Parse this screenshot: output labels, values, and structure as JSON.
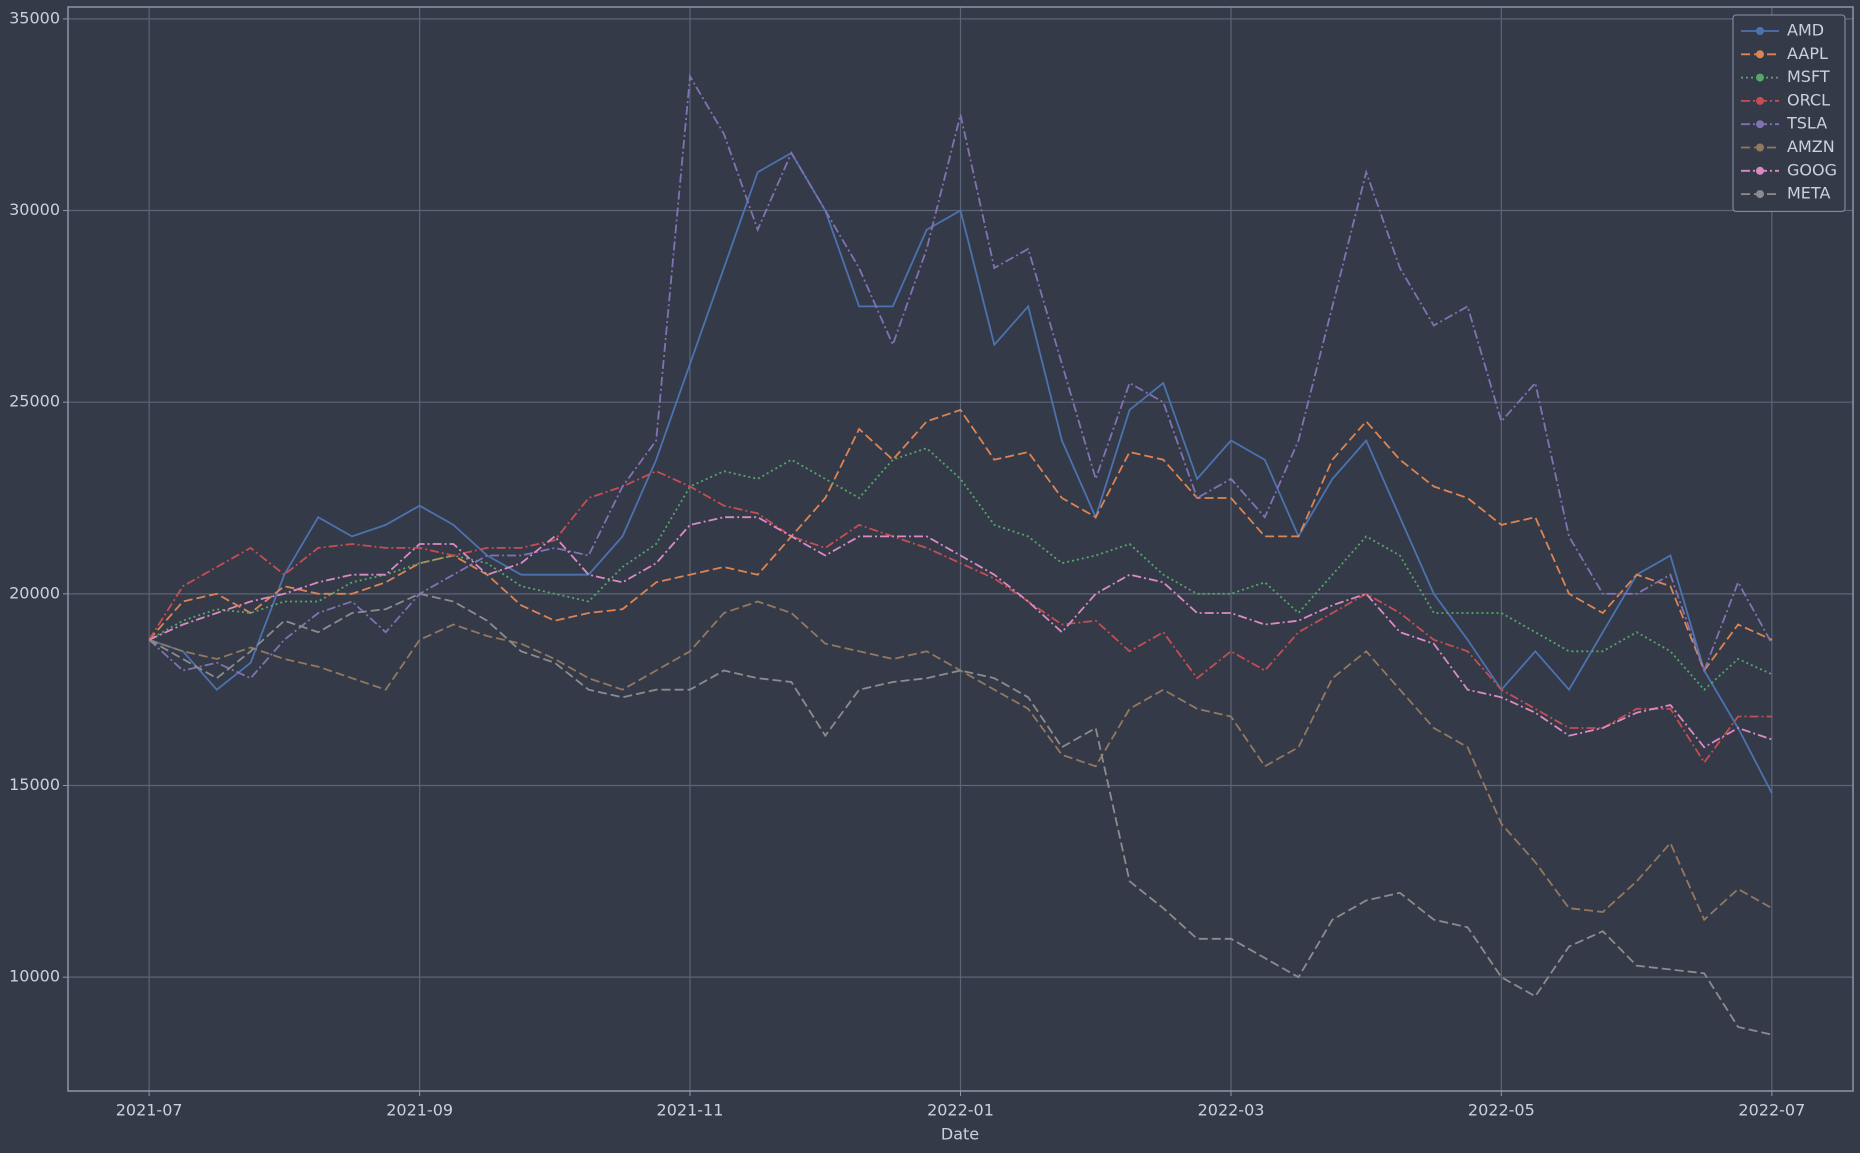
{
  "chart_data": {
    "type": "line",
    "xlabel": "Date",
    "x": [
      2021.5,
      2021.5208,
      2021.5417,
      2021.5625,
      2021.5833,
      2021.6042,
      2021.625,
      2021.6458,
      2021.6667,
      2021.6875,
      2021.7083,
      2021.7292,
      2021.75,
      2021.7708,
      2021.7917,
      2021.8125,
      2021.8333,
      2021.8542,
      2021.875,
      2021.8958,
      2021.9167,
      2021.9375,
      2021.9583,
      2021.9792,
      2022.0,
      2022.0208,
      2022.0417,
      2022.0625,
      2022.0833,
      2022.1042,
      2022.125,
      2022.1458,
      2022.1667,
      2022.1875,
      2022.2083,
      2022.2292,
      2022.25,
      2022.2708,
      2022.2917,
      2022.3125,
      2022.3333,
      2022.3542,
      2022.375,
      2022.3958,
      2022.4167,
      2022.4375,
      2022.4583,
      2022.4792,
      2022.5
    ],
    "xlim": [
      2021.45,
      2022.55
    ],
    "xticks": [
      {
        "value": 2021.5,
        "label": "2021-07"
      },
      {
        "value": 2021.6667,
        "label": "2021-09"
      },
      {
        "value": 2021.8333,
        "label": "2021-11"
      },
      {
        "value": 2022.0,
        "label": "2022-01"
      },
      {
        "value": 2022.1667,
        "label": "2022-03"
      },
      {
        "value": 2022.3333,
        "label": "2022-05"
      },
      {
        "value": 2022.5,
        "label": "2022-07"
      }
    ],
    "ylim": [
      7030,
      35310
    ],
    "yticks": [
      10000,
      15000,
      20000,
      25000,
      30000,
      35000
    ],
    "grid": true,
    "legend": "upper right",
    "series": [
      {
        "name": "AMD",
        "color": "#4c72b0",
        "dash": "solid",
        "values": [
          18800,
          18500,
          17500,
          18200,
          20500,
          22000,
          21500,
          21800,
          22300,
          21800,
          21000,
          20500,
          20500,
          20500,
          21500,
          23500,
          26000,
          28500,
          31000,
          31500,
          30000,
          27500,
          27500,
          29500,
          30000,
          26500,
          27500,
          24000,
          22000,
          24800,
          25500,
          23000,
          24000,
          23500,
          21500,
          23000,
          24000,
          22000,
          20000,
          18800,
          17500,
          18500,
          17500,
          19000,
          20500,
          21000,
          18000,
          16500,
          14800
        ]
      },
      {
        "name": "AAPL",
        "color": "#dd8452",
        "dash": "dashed",
        "values": [
          18800,
          19800,
          20000,
          19500,
          20200,
          20000,
          20000,
          20300,
          20800,
          21000,
          20500,
          19700,
          19300,
          19500,
          19600,
          20300,
          20500,
          20700,
          20500,
          21500,
          22500,
          24300,
          23500,
          24500,
          24800,
          23500,
          23700,
          22500,
          22000,
          23700,
          23500,
          22500,
          22500,
          21500,
          21500,
          23500,
          24500,
          23500,
          22800,
          22500,
          21800,
          22000,
          20000,
          19500,
          20500,
          20200,
          18000,
          19200,
          18800
        ]
      },
      {
        "name": "MSFT",
        "color": "#55a868",
        "dash": "dotted",
        "values": [
          18800,
          19300,
          19600,
          19500,
          19800,
          19800,
          20300,
          20500,
          20800,
          21000,
          20800,
          20200,
          20000,
          19800,
          20700,
          21300,
          22800,
          23200,
          23000,
          23500,
          23000,
          22500,
          23500,
          23800,
          23000,
          21800,
          21500,
          20800,
          21000,
          21300,
          20500,
          20000,
          20000,
          20300,
          19500,
          20500,
          21500,
          21000,
          19500,
          19500,
          19500,
          19000,
          18500,
          18500,
          19000,
          18500,
          17500,
          18300,
          17900
        ]
      },
      {
        "name": "ORCL",
        "color": "#c44e52",
        "dash": "dashdot",
        "values": [
          18800,
          20200,
          20700,
          21200,
          20500,
          21200,
          21300,
          21200,
          21200,
          21000,
          21200,
          21200,
          21400,
          22500,
          22800,
          23200,
          22800,
          22300,
          22100,
          21500,
          21200,
          21800,
          21500,
          21200,
          20800,
          20400,
          19800,
          19200,
          19300,
          18500,
          19000,
          17800,
          18500,
          18000,
          19000,
          19500,
          20000,
          19500,
          18800,
          18500,
          17500,
          17000,
          16500,
          16500,
          17000,
          17000,
          15600,
          16800,
          16800
        ]
      },
      {
        "name": "TSLA",
        "color": "#8172b3",
        "dash": "dashdot",
        "values": [
          18800,
          18000,
          18200,
          17800,
          18800,
          19500,
          19800,
          19000,
          20000,
          20500,
          21000,
          21000,
          21200,
          21000,
          22800,
          24000,
          33500,
          32000,
          29500,
          31500,
          30000,
          28500,
          26500,
          29000,
          32500,
          28500,
          29000,
          26000,
          23000,
          25500,
          25000,
          22500,
          23000,
          22000,
          24000,
          27500,
          31000,
          28500,
          27000,
          27500,
          24500,
          25500,
          21500,
          20000,
          20000,
          20500,
          18000,
          20300,
          18700
        ]
      },
      {
        "name": "AMZN",
        "color": "#937860",
        "dash": "dashed",
        "values": [
          18800,
          18500,
          18300,
          18600,
          18300,
          18100,
          17800,
          17500,
          18800,
          19200,
          18900,
          18700,
          18300,
          17800,
          17500,
          18000,
          18500,
          19500,
          19800,
          19500,
          18700,
          18500,
          18300,
          18500,
          18000,
          17500,
          17000,
          15800,
          15500,
          17000,
          17500,
          17000,
          16800,
          15500,
          16000,
          17800,
          18500,
          17500,
          16500,
          16000,
          14000,
          13000,
          11800,
          11700,
          12500,
          13500,
          11500,
          12300,
          11800
        ]
      },
      {
        "name": "GOOG",
        "color": "#da8bc3",
        "dash": "dashdot",
        "values": [
          18800,
          19200,
          19500,
          19800,
          20000,
          20300,
          20500,
          20500,
          21300,
          21300,
          20500,
          20800,
          21500,
          20500,
          20300,
          20800,
          21800,
          22000,
          22000,
          21500,
          21000,
          21500,
          21500,
          21500,
          21000,
          20500,
          19800,
          19000,
          20000,
          20500,
          20300,
          19500,
          19500,
          19200,
          19300,
          19700,
          20000,
          19000,
          18700,
          17500,
          17300,
          16900,
          16300,
          16500,
          16900,
          17100,
          16000,
          16500,
          16200
        ]
      },
      {
        "name": "META",
        "color": "#8c8c8c",
        "dash": "dashed",
        "values": [
          18800,
          18300,
          17800,
          18500,
          19300,
          19000,
          19500,
          19600,
          20000,
          19800,
          19300,
          18500,
          18200,
          17500,
          17300,
          17500,
          17500,
          18000,
          17800,
          17700,
          16300,
          17500,
          17700,
          17800,
          18000,
          17800,
          17300,
          16000,
          16500,
          12500,
          11800,
          11000,
          11000,
          10500,
          10000,
          11500,
          12000,
          12200,
          11500,
          11300,
          10000,
          9500,
          10800,
          11200,
          10300,
          10200,
          10100,
          8700,
          8500
        ]
      }
    ]
  }
}
